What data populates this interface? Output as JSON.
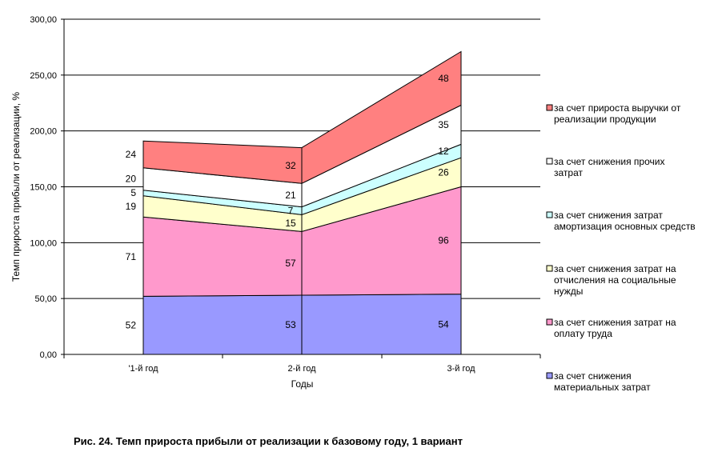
{
  "chart_data": {
    "type": "area",
    "stacked": true,
    "categories": [
      "'1-й год",
      "2-й год",
      "3-й год"
    ],
    "xlabel": "Годы",
    "ylabel": "Темп прироста прибыли от реализации, %",
    "ylim": [
      0,
      300
    ],
    "yticks": [
      "0,00",
      "50,00",
      "100,00",
      "150,00",
      "200,00",
      "250,00",
      "300,00"
    ],
    "grid": true,
    "legend_position": "right",
    "series": [
      {
        "name": "за счет снижения материальных затрат",
        "values": [
          52,
          53,
          54
        ],
        "color": "#9999ff"
      },
      {
        "name": "за счет снижения затрат на оплату труда",
        "values": [
          71,
          57,
          96
        ],
        "color": "#ff99cc"
      },
      {
        "name": "за счет снижения затрат на отчисления на социальные нужды",
        "values": [
          19,
          15,
          26
        ],
        "color": "#ffffcc"
      },
      {
        "name": "за счет снижения затрат амортизация основных средств",
        "values": [
          5,
          7,
          12
        ],
        "color": "#ccffff"
      },
      {
        "name": "за счет снижения прочих затрат",
        "values": [
          20,
          21,
          35
        ],
        "color": "#ffffff"
      },
      {
        "name": "за счет прироста выручки от реализации продукции",
        "values": [
          24,
          32,
          48
        ],
        "color": "#ff8080"
      }
    ]
  },
  "caption": "Рис. 24. Темп прироста прибыли от реализации к базовому году, 1 вариант"
}
